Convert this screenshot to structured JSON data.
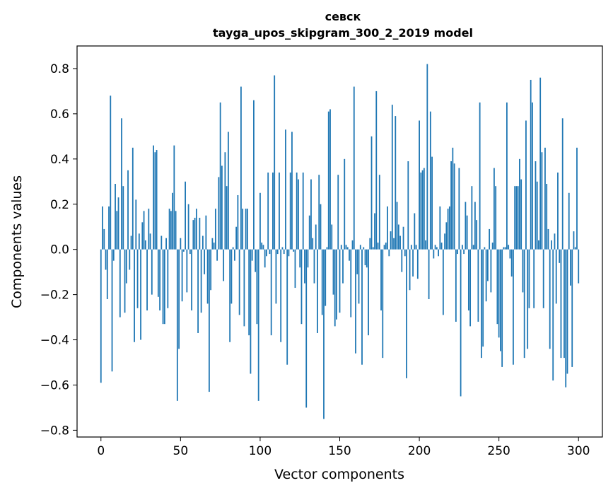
{
  "chart_data": {
    "type": "bar",
    "title": "севск",
    "subtitle": "tayga_upos_skipgram_300_2_2019 model",
    "xlabel": "Vector components",
    "ylabel": "Components values",
    "xlim": [
      -15,
      315
    ],
    "ylim": [
      -0.83,
      0.9
    ],
    "xticks": [
      0,
      50,
      100,
      150,
      200,
      250,
      300
    ],
    "yticks": [
      -0.8,
      -0.6,
      -0.4,
      -0.2,
      0.0,
      0.2,
      0.4,
      0.6,
      0.8
    ],
    "ytick_labels": [
      "−0.8",
      "−0.6",
      "−0.4",
      "−0.2",
      "0.0",
      "0.2",
      "0.4",
      "0.6",
      "0.8"
    ],
    "bar_color": "#1f77b4",
    "grid": false,
    "series": [
      {
        "name": "components",
        "values": [
          -0.59,
          0.19,
          0.09,
          -0.09,
          -0.22,
          0.19,
          0.68,
          -0.54,
          -0.05,
          0.29,
          0.17,
          0.23,
          -0.3,
          0.58,
          0.28,
          -0.28,
          -0.15,
          0.35,
          -0.09,
          0.06,
          0.45,
          -0.41,
          0.22,
          -0.26,
          0.07,
          -0.4,
          0.12,
          0.17,
          0.04,
          -0.27,
          0.18,
          0.07,
          -0.2,
          0.46,
          0.43,
          0.44,
          -0.21,
          -0.27,
          0.06,
          -0.33,
          -0.33,
          0.05,
          -0.26,
          0.18,
          0.17,
          0.25,
          0.46,
          0.17,
          -0.67,
          -0.44,
          0.05,
          -0.23,
          -0.01,
          0.3,
          -0.19,
          0.2,
          -0.02,
          -0.27,
          0.13,
          0.14,
          0.18,
          -0.37,
          0.14,
          -0.28,
          0.06,
          -0.11,
          0.15,
          -0.24,
          -0.63,
          -0.18,
          0.05,
          0.03,
          0.18,
          -0.05,
          0.32,
          0.65,
          0.37,
          -0.14,
          0.43,
          0.28,
          0.52,
          -0.41,
          -0.24,
          0.01,
          -0.05,
          0.1,
          0.24,
          -0.29,
          0.72,
          0.18,
          -0.34,
          0.18,
          0.18,
          -0.38,
          -0.55,
          -0.05,
          0.66,
          -0.1,
          -0.33,
          -0.67,
          0.25,
          0.03,
          0.02,
          -0.08,
          -0.03,
          0.34,
          -0.02,
          -0.38,
          0.34,
          0.77,
          -0.24,
          -0.02,
          0.34,
          -0.41,
          0.01,
          -0.02,
          0.53,
          -0.51,
          -0.03,
          0.34,
          0.52,
          -0.01,
          -0.17,
          0.34,
          0.31,
          -0.08,
          -0.33,
          0.34,
          -0.15,
          -0.7,
          -0.08,
          0.15,
          0.31,
          0.05,
          -0.15,
          0.11,
          -0.37,
          0.33,
          0.2,
          -0.29,
          -0.75,
          -0.25,
          0.01,
          0.61,
          0.62,
          0.11,
          -0.2,
          -0.34,
          -0.31,
          0.33,
          -0.28,
          0.02,
          -0.15,
          0.4,
          0.02,
          0.01,
          -0.05,
          -0.3,
          0.04,
          0.72,
          -0.46,
          -0.11,
          -0.24,
          0.02,
          -0.51,
          0.01,
          -0.07,
          -0.08,
          -0.38,
          0.05,
          0.5,
          0.01,
          0.16,
          0.7,
          0.03,
          0.33,
          -0.27,
          -0.48,
          0.02,
          0.03,
          0.19,
          -0.03,
          0.08,
          0.64,
          0.05,
          0.59,
          0.21,
          0.11,
          0.06,
          -0.1,
          0.1,
          -0.03,
          -0.57,
          0.39,
          -0.18,
          0.02,
          -0.12,
          0.16,
          0.02,
          -0.13,
          0.57,
          0.34,
          0.35,
          0.36,
          0.04,
          0.82,
          -0.22,
          0.61,
          0.41,
          -0.04,
          0.02,
          0.01,
          -0.03,
          0.19,
          0.03,
          -0.29,
          0.07,
          0.12,
          0.18,
          0.19,
          0.39,
          0.45,
          0.38,
          -0.32,
          -0.02,
          0.36,
          -0.65,
          0.02,
          -0.02,
          0.21,
          0.15,
          -0.27,
          -0.34,
          0.28,
          0.02,
          0.21,
          0.13,
          -0.32,
          0.65,
          -0.48,
          -0.43,
          0.01,
          -0.23,
          -0.14,
          0.09,
          -0.19,
          0.03,
          0.36,
          0.28,
          -0.33,
          -0.39,
          -0.45,
          -0.52,
          0.01,
          0.01,
          0.65,
          0.02,
          -0.04,
          -0.12,
          -0.51,
          0.28,
          0.28,
          0.28,
          0.4,
          0.31,
          -0.19,
          -0.48,
          0.57,
          -0.44,
          -0.26,
          0.75,
          0.65,
          -0.26,
          0.39,
          0.3,
          0.04,
          0.76,
          0.43,
          -0.26,
          0.45,
          0.29,
          0.09,
          -0.44,
          0.04,
          -0.58,
          0.07,
          -0.24,
          0.34,
          -0.06,
          -0.48,
          0.58,
          -0.48,
          -0.61,
          -0.55,
          0.25,
          -0.16,
          -0.52,
          0.08,
          0.01,
          0.45,
          -0.15
        ]
      }
    ]
  }
}
